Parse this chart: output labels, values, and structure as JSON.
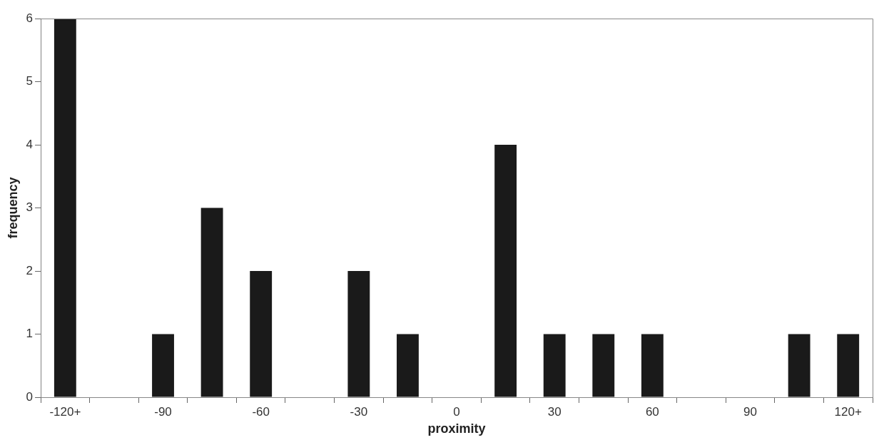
{
  "chart_data": {
    "type": "bar",
    "xlabel": "proximity",
    "ylabel": "frequency",
    "categories": [
      "-120+",
      null,
      "-90",
      null,
      "-60",
      null,
      "-30",
      null,
      "0",
      null,
      "30",
      null,
      "60",
      null,
      "90",
      null,
      "120+"
    ],
    "values": [
      6,
      0,
      1,
      3,
      2,
      0,
      2,
      1,
      0,
      4,
      1,
      1,
      1,
      0,
      0,
      1,
      1
    ],
    "color": "#1a1a1a",
    "ylim": [
      0,
      6
    ],
    "yticks": [
      0,
      1,
      2,
      3,
      4,
      5,
      6
    ],
    "grid": false,
    "legend": false
  }
}
